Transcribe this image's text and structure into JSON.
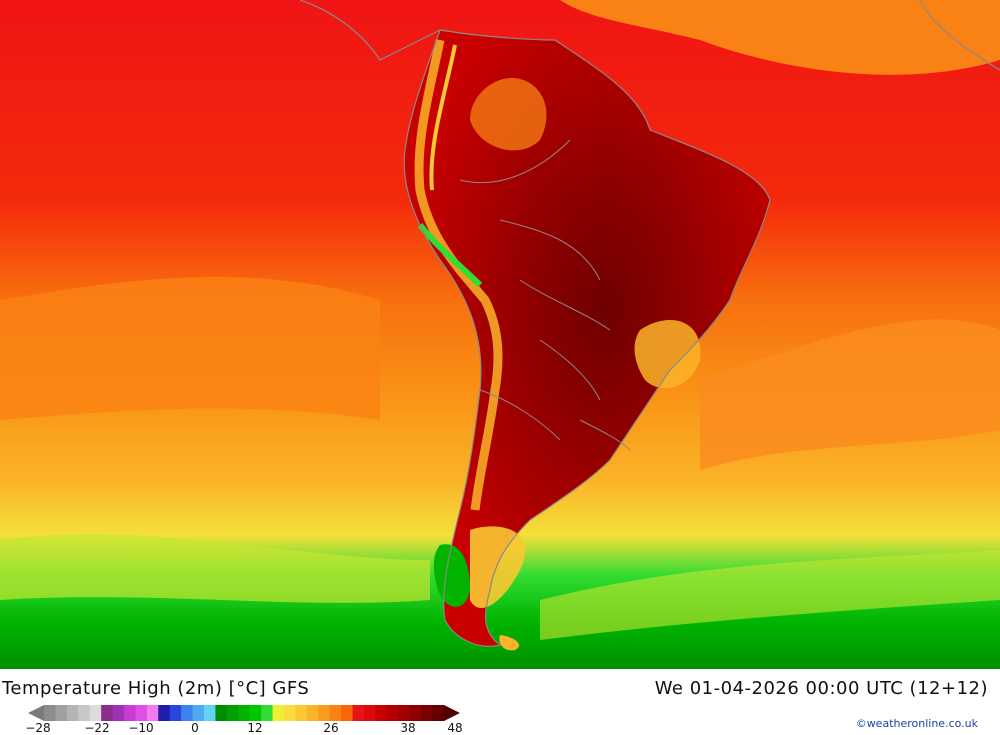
{
  "title": "Temperature High (2m) [°C] GFS",
  "datetime": "We 01-04-2026 00:00 UTC (12+12)",
  "copyright": "©weatheronline.co.uk",
  "legend": {
    "ticks": [
      "-28",
      "-22",
      "-10",
      "0",
      "12",
      "26",
      "38",
      "48"
    ],
    "colors": [
      "#8c8c8c",
      "#a0a0a0",
      "#b4b4b4",
      "#c8c8c8",
      "#dcdcdc",
      "#8c2d8c",
      "#a032b4",
      "#c83cd2",
      "#dc50e6",
      "#f07cf0",
      "#1e1eaa",
      "#2846dc",
      "#3c82f0",
      "#50aaf0",
      "#64d2f0",
      "#008c00",
      "#00a000",
      "#00b400",
      "#00c800",
      "#32dc32",
      "#f0f032",
      "#fadc3c",
      "#fac832",
      "#fab428",
      "#fa9b1e",
      "#fa8214",
      "#fa640a",
      "#e61414",
      "#dc0a0a",
      "#c80000",
      "#b40000",
      "#a00000",
      "#8c0000",
      "#780000",
      "#640000"
    ]
  }
}
